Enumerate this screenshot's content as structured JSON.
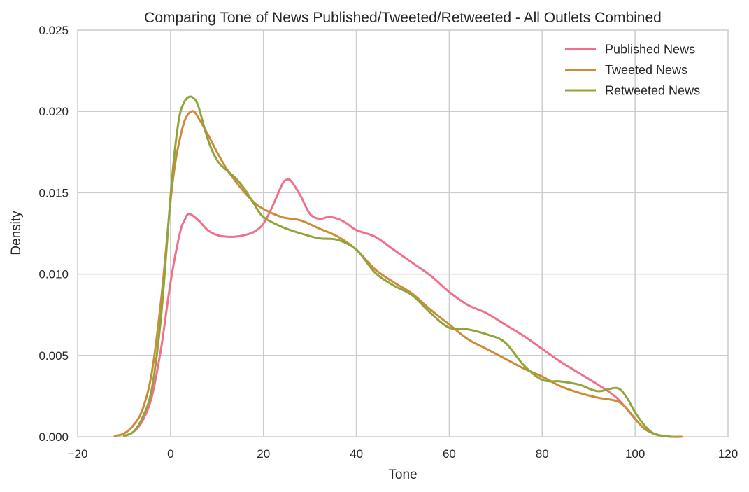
{
  "chart_data": {
    "type": "line",
    "title": "Comparing Tone of News Published/Tweeted/Retweeted - All Outlets Combined",
    "xlabel": "Tone",
    "ylabel": "Density",
    "xlim": [
      -20,
      120
    ],
    "ylim": [
      0,
      0.025
    ],
    "x_ticks": [
      -20,
      0,
      20,
      40,
      60,
      80,
      100,
      120
    ],
    "x_tick_labels": [
      "−20",
      "0",
      "20",
      "40",
      "60",
      "80",
      "100",
      "120"
    ],
    "y_ticks": [
      0,
      0.005,
      0.01,
      0.015,
      0.02,
      0.025
    ],
    "y_tick_labels": [
      "0.000",
      "0.005",
      "0.010",
      "0.015",
      "0.020",
      "0.025"
    ],
    "grid": true,
    "legend_position": "top-right",
    "series": [
      {
        "name": "Published News",
        "color": "#f0708a",
        "x": [
          -10,
          -8,
          -6,
          -4,
          -2,
          0,
          2,
          3,
          4,
          6,
          8,
          10,
          12,
          14,
          16,
          18,
          20,
          22,
          24,
          25,
          26,
          28,
          30,
          32,
          34,
          36,
          38,
          40,
          44,
          48,
          52,
          56,
          60,
          64,
          68,
          72,
          76,
          80,
          84,
          88,
          92,
          96,
          100,
          102,
          104,
          106,
          108
        ],
        "y": [
          5e-05,
          0.0003,
          0.001,
          0.0025,
          0.0055,
          0.0095,
          0.0125,
          0.0133,
          0.0137,
          0.0133,
          0.0127,
          0.0124,
          0.0123,
          0.0123,
          0.0124,
          0.0126,
          0.0131,
          0.0142,
          0.0155,
          0.0158,
          0.0157,
          0.0148,
          0.0137,
          0.0134,
          0.0135,
          0.0134,
          0.0131,
          0.0127,
          0.0123,
          0.0115,
          0.0107,
          0.0099,
          0.0089,
          0.0081,
          0.0076,
          0.0069,
          0.0062,
          0.0054,
          0.0046,
          0.0039,
          0.0032,
          0.0024,
          0.0011,
          0.0005,
          0.0002,
          5e-05,
          0.0
        ]
      },
      {
        "name": "Tweeted News",
        "color": "#cd8b3a",
        "x": [
          -12,
          -10,
          -8,
          -6,
          -4,
          -2,
          0,
          1,
          2,
          3,
          4,
          5,
          6,
          8,
          10,
          12,
          14,
          16,
          18,
          20,
          24,
          28,
          32,
          36,
          40,
          44,
          48,
          52,
          56,
          60,
          64,
          68,
          72,
          76,
          80,
          84,
          88,
          92,
          96,
          98,
          100,
          102,
          104,
          106,
          108,
          110
        ],
        "y": [
          5e-05,
          0.0002,
          0.0007,
          0.0017,
          0.004,
          0.0085,
          0.0145,
          0.0168,
          0.0183,
          0.0194,
          0.0199,
          0.02,
          0.0196,
          0.0186,
          0.0175,
          0.0165,
          0.0157,
          0.015,
          0.0144,
          0.014,
          0.0135,
          0.0133,
          0.0128,
          0.0123,
          0.0115,
          0.0103,
          0.0095,
          0.0088,
          0.0078,
          0.0069,
          0.006,
          0.0054,
          0.0048,
          0.0042,
          0.0037,
          0.0031,
          0.0027,
          0.0024,
          0.0022,
          0.0018,
          0.0011,
          0.0005,
          0.0002,
          5e-05,
          0.0,
          0.0
        ]
      },
      {
        "name": "Retweeted News",
        "color": "#8fa43a",
        "x": [
          -10,
          -8,
          -6,
          -4,
          -2,
          0,
          1,
          2,
          3,
          4,
          5,
          6,
          8,
          10,
          12,
          14,
          16,
          18,
          20,
          24,
          28,
          32,
          36,
          40,
          44,
          48,
          52,
          56,
          60,
          64,
          68,
          72,
          76,
          80,
          84,
          88,
          92,
          96,
          98,
          100,
          102,
          104,
          106,
          108
        ],
        "y": [
          5e-05,
          0.0003,
          0.0012,
          0.003,
          0.0075,
          0.0148,
          0.0178,
          0.0198,
          0.0206,
          0.0209,
          0.0208,
          0.0203,
          0.0183,
          0.017,
          0.0164,
          0.0159,
          0.0152,
          0.0143,
          0.0135,
          0.0129,
          0.0125,
          0.0122,
          0.0121,
          0.0115,
          0.0101,
          0.0093,
          0.0087,
          0.0076,
          0.0067,
          0.0066,
          0.0063,
          0.0058,
          0.0044,
          0.0035,
          0.0034,
          0.0032,
          0.0028,
          0.003,
          0.0025,
          0.0015,
          0.0007,
          0.0002,
          5e-05,
          0.0
        ]
      }
    ]
  }
}
